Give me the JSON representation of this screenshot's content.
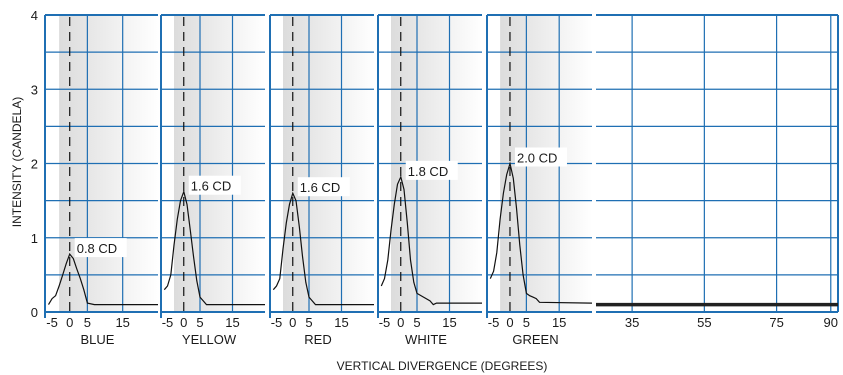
{
  "chart_data": {
    "type": "line",
    "title": "",
    "xlabel": "VERTICAL DIVERGENCE (DEGREES)",
    "ylabel": "INTENSITY (CANDELA)",
    "ylim": [
      0,
      4
    ],
    "yticks": [
      "0",
      "1",
      "2",
      "3",
      "4"
    ],
    "panel_xlim": [
      -7,
      25
    ],
    "panel_xticks": [
      "-5",
      "0",
      "5",
      "15"
    ],
    "tail_xticks": [
      "35",
      "55",
      "75",
      "90"
    ],
    "tail_value": 0.1,
    "reference_line_x": 0,
    "shaded_band": [
      -3,
      25
    ],
    "grid": true,
    "colors": {
      "grid": "#1f6fb3",
      "line": "#111111",
      "shade": "#dcdcdc"
    },
    "panels": [
      {
        "name": "BLUE",
        "peak_label": "0.8 CD",
        "x": [
          -6,
          -5,
          -4,
          -3,
          -2,
          -1,
          0,
          1,
          2,
          3,
          4,
          5,
          7,
          25
        ],
        "y": [
          0.1,
          0.18,
          0.22,
          0.35,
          0.5,
          0.65,
          0.78,
          0.72,
          0.58,
          0.45,
          0.3,
          0.12,
          0.1,
          0.1
        ]
      },
      {
        "name": "YELLOW",
        "peak_label": "1.6 CD",
        "x": [
          -6,
          -5,
          -4,
          -3,
          -2,
          -1,
          0,
          1,
          2,
          3,
          4,
          5,
          7,
          25
        ],
        "y": [
          0.3,
          0.35,
          0.5,
          0.9,
          1.25,
          1.5,
          1.62,
          1.45,
          1.1,
          0.75,
          0.42,
          0.2,
          0.1,
          0.1
        ]
      },
      {
        "name": "RED",
        "peak_label": "1.6 CD",
        "x": [
          -6,
          -5,
          -4,
          -3,
          -2,
          -1,
          0,
          1,
          2,
          3,
          4,
          5,
          7,
          25
        ],
        "y": [
          0.3,
          0.35,
          0.45,
          0.85,
          1.2,
          1.45,
          1.6,
          1.5,
          1.15,
          0.75,
          0.4,
          0.2,
          0.1,
          0.1
        ]
      },
      {
        "name": "WHITE",
        "peak_label": "1.8 CD",
        "x": [
          -6,
          -5,
          -4,
          -3,
          -2,
          -1,
          0,
          1,
          2,
          3,
          4,
          5,
          7,
          9,
          10,
          11,
          25
        ],
        "y": [
          0.35,
          0.45,
          0.7,
          1.1,
          1.45,
          1.72,
          1.82,
          1.65,
          1.2,
          0.7,
          0.4,
          0.25,
          0.2,
          0.15,
          0.1,
          0.12,
          0.12
        ]
      },
      {
        "name": "GREEN",
        "peak_label": "2.0 CD",
        "x": [
          -6,
          -5,
          -4,
          -3,
          -2,
          -1,
          0,
          1,
          2,
          3,
          4,
          5,
          6,
          7,
          8,
          9,
          25
        ],
        "y": [
          0.45,
          0.55,
          0.8,
          1.25,
          1.6,
          1.85,
          2.0,
          1.8,
          1.4,
          0.9,
          0.5,
          0.25,
          0.22,
          0.2,
          0.18,
          0.13,
          0.12
        ]
      }
    ]
  }
}
